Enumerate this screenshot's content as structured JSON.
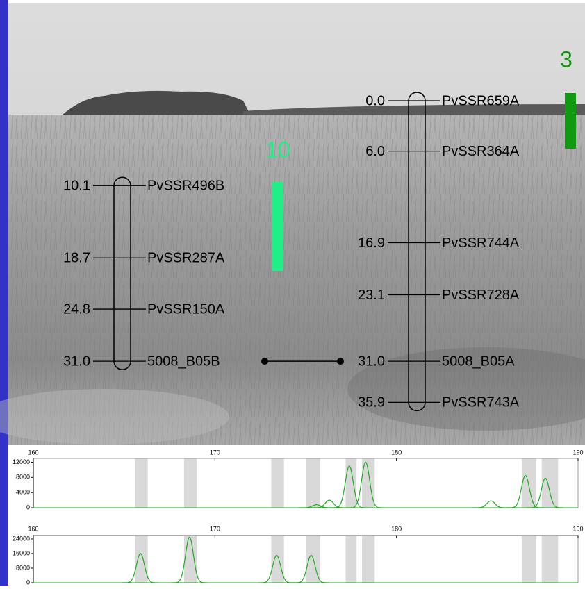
{
  "linkage_groups": [
    {
      "name": "10",
      "color": "#22ee88",
      "markers": [
        {
          "position": 10.1,
          "label": "PvSSR496B"
        },
        {
          "position": 18.7,
          "label": "PvSSR287A"
        },
        {
          "position": 24.8,
          "label": "PvSSR150A"
        },
        {
          "position": {
            "value": 31,
            "label": "31.0"
          },
          "label": "5008_B05B"
        }
      ]
    },
    {
      "name": "3",
      "color": "#119911",
      "markers": [
        {
          "position": {
            "value": 0,
            "label": "0.0"
          },
          "label": "PvSSR659A"
        },
        {
          "position": {
            "value": 6,
            "label": "6.0"
          },
          "label": "PvSSR364A"
        },
        {
          "position": 16.9,
          "label": "PvSSR744A"
        },
        {
          "position": 23.1,
          "label": "PvSSR728A"
        },
        {
          "position": {
            "value": 31,
            "label": "31.0"
          },
          "label": "5008_B05A"
        },
        {
          "position": 35.9,
          "label": "PvSSR743A"
        }
      ]
    }
  ],
  "electropherograms": [
    {
      "xlim": [
        160,
        190
      ],
      "xticks": [
        160,
        170,
        180,
        190
      ],
      "ylim": [
        0,
        13000
      ],
      "yticks": [
        0,
        4000,
        8000,
        12000
      ],
      "color": "#22aa22",
      "bins": [
        [
          165.6,
          166.3
        ],
        [
          168.3,
          169
        ],
        [
          173.1,
          173.8
        ],
        [
          175,
          175.8
        ],
        [
          177.2,
          177.8
        ],
        [
          178.1,
          178.8
        ],
        [
          186.9,
          187.7
        ],
        [
          188,
          188.9
        ]
      ],
      "peaks": {
        "x": [
          175.6,
          176.3,
          177.4,
          178.3,
          185.2,
          187.1,
          188.2
        ],
        "values": [
          800,
          2000,
          11000,
          12000,
          1800,
          8500,
          7800
        ]
      }
    },
    {
      "xlim": [
        160,
        190
      ],
      "xticks": [
        160,
        170,
        180,
        190
      ],
      "ylim": [
        0,
        26000
      ],
      "yticks": [
        0,
        8000,
        16000,
        24000
      ],
      "color": "#22aa22",
      "bins": [
        [
          165.6,
          166.3
        ],
        [
          168.3,
          169
        ],
        [
          173.1,
          173.8
        ],
        [
          175,
          175.8
        ],
        [
          177.2,
          177.8
        ],
        [
          178.1,
          178.8
        ],
        [
          186.9,
          187.7
        ],
        [
          188,
          188.9
        ]
      ],
      "peaks": {
        "x": [
          165.9,
          168.6,
          173.4,
          175.3
        ],
        "values": [
          16000,
          25000,
          15000,
          15000
        ]
      }
    }
  ]
}
